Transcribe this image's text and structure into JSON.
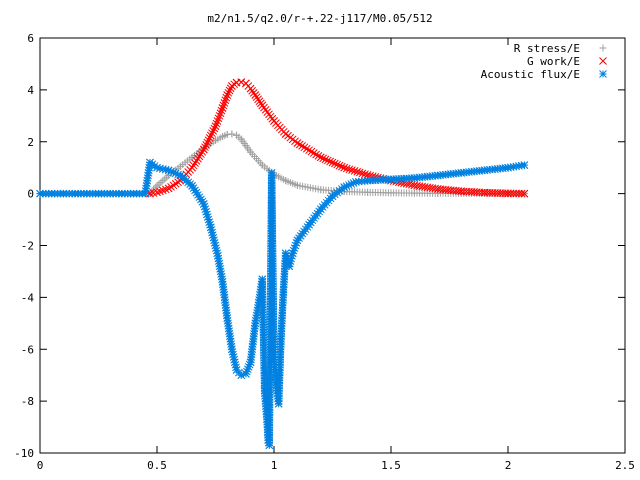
{
  "chart_data": {
    "type": "scatter",
    "title": "m2/n1.5/q2.0/r-+.22-j117/M0.05/512",
    "xlabel": "",
    "ylabel": "",
    "xlim": [
      0,
      2.5
    ],
    "ylim": [
      -10,
      6
    ],
    "xticks": [
      0,
      0.5,
      1,
      1.5,
      2,
      2.5
    ],
    "xtick_labels": [
      "0",
      "0.5",
      "1",
      "1.5",
      "2",
      "2.5"
    ],
    "yticks": [
      6,
      4,
      2,
      0,
      -2,
      -4,
      -6,
      -8,
      -10
    ],
    "ytick_labels": [
      "6",
      "4",
      "2",
      "0",
      "-2",
      "-4",
      "-6",
      "-8",
      "-10"
    ],
    "grid": false,
    "legend_position": "top-right",
    "series": [
      {
        "name": "R stress/E",
        "marker": "+",
        "color": "#a0a0a0",
        "x": [
          0.47,
          0.5,
          0.55,
          0.6,
          0.65,
          0.7,
          0.75,
          0.78,
          0.8,
          0.82,
          0.84,
          0.86,
          0.88,
          0.9,
          0.95,
          1.0,
          1.05,
          1.1,
          1.2,
          1.3,
          1.4,
          1.5,
          1.6,
          1.7,
          1.8,
          1.9,
          2.0,
          2.07
        ],
        "y": [
          0.0,
          0.3,
          0.7,
          1.05,
          1.4,
          1.75,
          2.05,
          2.2,
          2.28,
          2.3,
          2.25,
          2.1,
          1.85,
          1.6,
          1.1,
          0.75,
          0.5,
          0.32,
          0.15,
          0.08,
          0.05,
          0.03,
          0.02,
          0.01,
          0.01,
          0.01,
          0.0,
          0.0
        ]
      },
      {
        "name": "G work/E",
        "marker": "x",
        "color": "#ff0000",
        "x": [
          0.47,
          0.5,
          0.55,
          0.6,
          0.65,
          0.7,
          0.75,
          0.78,
          0.8,
          0.82,
          0.84,
          0.86,
          0.88,
          0.9,
          0.92,
          0.95,
          1.0,
          1.05,
          1.1,
          1.2,
          1.3,
          1.4,
          1.5,
          1.6,
          1.7,
          1.8,
          1.9,
          2.0,
          2.07
        ],
        "y": [
          0.0,
          0.05,
          0.2,
          0.5,
          1.0,
          1.7,
          2.6,
          3.3,
          3.8,
          4.15,
          4.28,
          4.3,
          4.25,
          4.05,
          3.8,
          3.4,
          2.8,
          2.3,
          1.95,
          1.4,
          1.0,
          0.72,
          0.5,
          0.32,
          0.18,
          0.09,
          0.04,
          0.01,
          0.0
        ]
      },
      {
        "name": "Acoustic flux/E",
        "marker": "*",
        "color": "#0080e0",
        "x": [
          0.0,
          0.05,
          0.1,
          0.15,
          0.2,
          0.25,
          0.3,
          0.35,
          0.4,
          0.45,
          0.47,
          0.5,
          0.55,
          0.6,
          0.65,
          0.7,
          0.73,
          0.76,
          0.78,
          0.8,
          0.82,
          0.84,
          0.86,
          0.88,
          0.9,
          0.92,
          0.935,
          0.95,
          0.96,
          0.97,
          0.975,
          0.98,
          0.99,
          1.0,
          1.01,
          1.02,
          1.03,
          1.04,
          1.05,
          1.06,
          1.065,
          1.07,
          1.08,
          1.1,
          1.15,
          1.2,
          1.25,
          1.3,
          1.35,
          1.4,
          1.5,
          1.6,
          1.7,
          1.8,
          1.9,
          2.0,
          2.07
        ],
        "y": [
          0.0,
          0.0,
          0.0,
          0.0,
          0.0,
          0.0,
          0.0,
          0.0,
          0.0,
          0.0,
          1.2,
          1.0,
          0.9,
          0.7,
          0.3,
          -0.4,
          -1.3,
          -2.4,
          -3.4,
          -4.8,
          -6.0,
          -6.8,
          -7.0,
          -6.95,
          -6.5,
          -5.0,
          -4.2,
          -3.3,
          -7.6,
          -8.7,
          -9.5,
          -9.7,
          0.8,
          -6.3,
          -7.4,
          -8.1,
          -5.6,
          -3.8,
          -2.3,
          -2.7,
          -2.8,
          -2.6,
          -2.3,
          -1.8,
          -1.2,
          -0.6,
          -0.1,
          0.25,
          0.45,
          0.5,
          0.55,
          0.6,
          0.7,
          0.8,
          0.9,
          1.0,
          1.1
        ]
      }
    ]
  }
}
